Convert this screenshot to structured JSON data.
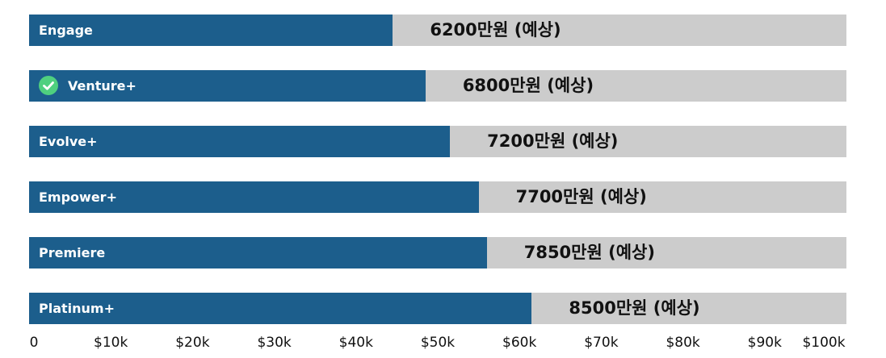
{
  "chart_data": {
    "type": "bar",
    "orientation": "horizontal",
    "title": "",
    "xlabel": "",
    "ylabel": "",
    "xlim": [
      0,
      100000
    ],
    "grid": false,
    "categories": [
      "Engage",
      "Venture+",
      "Evolve+",
      "Empower+",
      "Premiere",
      "Platinum+"
    ],
    "values": [
      44500,
      48500,
      51500,
      55000,
      56000,
      61500
    ],
    "data_labels": [
      "6200만원 (예상)",
      "6800만원 (예상)",
      "7200만원 (예상)",
      "7700만원 (예상)",
      "7850만원 (예상)",
      "8500만원 (예상)"
    ],
    "highlighted_category": "Venture+",
    "x_ticks": [
      {
        "value": 0,
        "label": "0"
      },
      {
        "value": 10000,
        "label": "$10k"
      },
      {
        "value": 20000,
        "label": "$20k"
      },
      {
        "value": 30000,
        "label": "$30k"
      },
      {
        "value": 40000,
        "label": "$40k"
      },
      {
        "value": 50000,
        "label": "$50k"
      },
      {
        "value": 60000,
        "label": "$60k"
      },
      {
        "value": 70000,
        "label": "$70k"
      },
      {
        "value": 80000,
        "label": "$80k"
      },
      {
        "value": 90000,
        "label": "$90k"
      },
      {
        "value": 100000,
        "label": "$100k"
      }
    ],
    "colors": {
      "bar": "#1c5e8c",
      "track": "#cccccc",
      "check": "#4fd07f"
    }
  }
}
